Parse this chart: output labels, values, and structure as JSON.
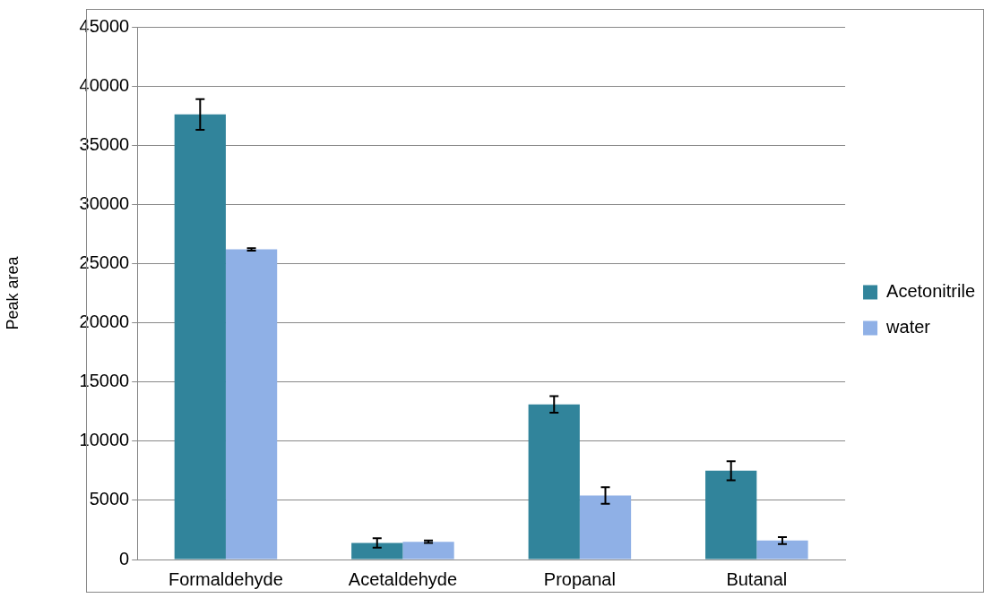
{
  "chart_data": {
    "type": "bar",
    "ylabel": "Peak area",
    "categories": [
      "Formaldehyde",
      "Acetaldehyde",
      "Propanal",
      "Butanal"
    ],
    "series": [
      {
        "name": "Acetonitrile",
        "color": "#31849b",
        "values": [
          37600,
          1400,
          13100,
          7500
        ],
        "errors": [
          1300,
          400,
          700,
          800
        ]
      },
      {
        "name": "water",
        "color": "#8fb0e6",
        "values": [
          26200,
          1500,
          5400,
          1600
        ],
        "errors": [
          100,
          100,
          700,
          300
        ]
      }
    ],
    "ylim": [
      0,
      45000
    ],
    "yticks": [
      0,
      5000,
      10000,
      15000,
      20000,
      25000,
      30000,
      35000,
      40000,
      45000
    ],
    "grid": "y",
    "legend": "right"
  }
}
